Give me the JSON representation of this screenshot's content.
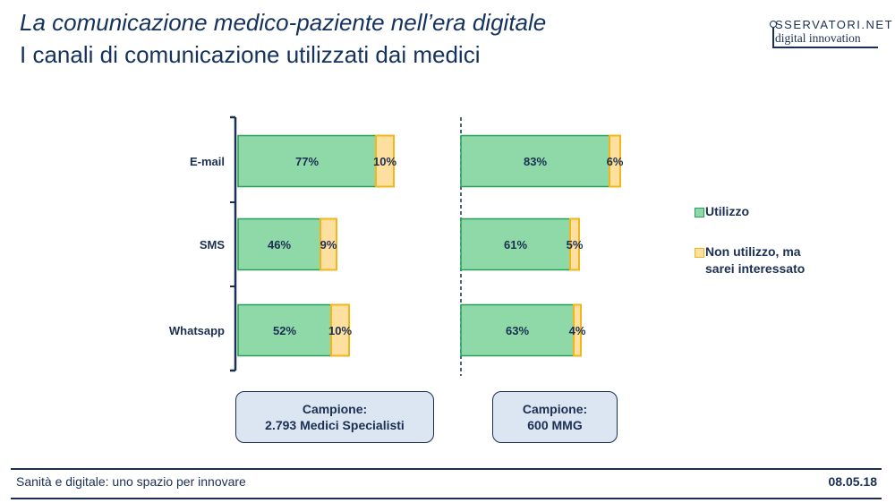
{
  "header": {
    "title": "La comunicazione medico-paziente nell’era digitale",
    "subtitle": "I canali di comunicazione utilizzati dai medici"
  },
  "logo": {
    "line1": "SSERVATORI.NET",
    "line2": "digital innovation"
  },
  "chart_data": {
    "type": "bar",
    "orientation": "horizontal",
    "stacked": true,
    "categories": [
      "E-mail",
      "SMS",
      "Whatsapp"
    ],
    "panels": [
      {
        "name": "Medici Specialisti",
        "series": [
          {
            "name": "Utilizzo",
            "values": [
              77,
              46,
              52
            ]
          },
          {
            "name": "Non utilizzo, ma sarei interessato",
            "values": [
              10,
              9,
              10
            ]
          }
        ]
      },
      {
        "name": "MMG",
        "series": [
          {
            "name": "Utilizzo",
            "values": [
              83,
              61,
              63
            ]
          },
          {
            "name": "Non utilizzo, ma sarei interessato",
            "values": [
              6,
              5,
              4
            ]
          }
        ]
      }
    ],
    "colors": {
      "utilizzo": "#8fd9a8",
      "utilizzo_border": "#25a058",
      "interessato": "#fde0a0",
      "interessato_border": "#f2b61b"
    },
    "value_suffix": "%",
    "legend_position": "right"
  },
  "samples": [
    {
      "label": "Campione:",
      "value": "2.793 Medici Specialisti"
    },
    {
      "label": "Campione:",
      "value": "600 MMG"
    }
  ],
  "legend": {
    "utilizzo": "Utilizzo",
    "interessato_line1": "Non utilizzo, ma",
    "interessato_line2": "sarei interessato"
  },
  "footer": {
    "left": "Sanità e digitale: uno spazio per innovare",
    "right": "08.05.18"
  }
}
